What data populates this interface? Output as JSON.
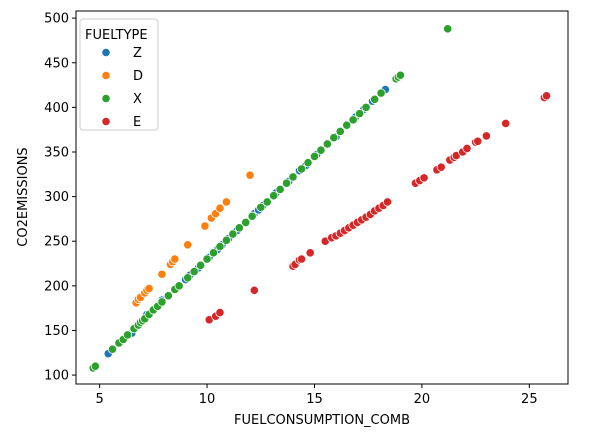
{
  "chart_data": {
    "type": "scatter",
    "xlabel": "FUELCONSUMPTION_COMB",
    "ylabel": "CO2EMISSIONS",
    "xlim": [
      3.9,
      26.8
    ],
    "ylim": [
      90,
      508
    ],
    "xticks": [
      5,
      10,
      15,
      20,
      25
    ],
    "yticks": [
      100,
      150,
      200,
      250,
      300,
      350,
      400,
      450,
      500
    ],
    "grid": false,
    "legend": {
      "title": "FUELTYPE",
      "placement": "upper-left"
    },
    "series": [
      {
        "name": "Z",
        "color": "#1f77b4",
        "points": [
          [
            5.4,
            124
          ],
          [
            6.5,
            147
          ],
          [
            7.2,
            168
          ],
          [
            7.9,
            184
          ],
          [
            8.6,
            198
          ],
          [
            9.0,
            207
          ],
          [
            9.2,
            212
          ],
          [
            9.6,
            220
          ],
          [
            10.1,
            232
          ],
          [
            10.5,
            241
          ],
          [
            10.7,
            246
          ],
          [
            11.0,
            253
          ],
          [
            11.4,
            262
          ],
          [
            11.8,
            271
          ],
          [
            12.2,
            281
          ],
          [
            12.4,
            285
          ],
          [
            12.6,
            290
          ],
          [
            13.2,
            304
          ],
          [
            13.8,
            317
          ],
          [
            14.3,
            329
          ],
          [
            14.6,
            335
          ],
          [
            15.1,
            347
          ],
          [
            15.6,
            358
          ],
          [
            16.0,
            367
          ],
          [
            16.5,
            379
          ],
          [
            16.9,
            389
          ],
          [
            17.3,
            398
          ],
          [
            17.7,
            407
          ],
          [
            18.2,
            418
          ],
          [
            18.3,
            420
          ]
        ]
      },
      {
        "name": "D",
        "color": "#ff7f0e",
        "points": [
          [
            6.7,
            181
          ],
          [
            6.8,
            185
          ],
          [
            6.9,
            187
          ],
          [
            7.1,
            192
          ],
          [
            7.2,
            195
          ],
          [
            7.3,
            197
          ],
          [
            7.9,
            213
          ],
          [
            8.3,
            224
          ],
          [
            8.4,
            227
          ],
          [
            8.5,
            230
          ],
          [
            9.1,
            246
          ],
          [
            9.9,
            267
          ],
          [
            10.2,
            276
          ],
          [
            10.4,
            281
          ],
          [
            10.6,
            287
          ],
          [
            10.9,
            294
          ],
          [
            12.0,
            324
          ]
        ]
      },
      {
        "name": "X",
        "color": "#2ca02c",
        "points": [
          [
            4.7,
            108
          ],
          [
            4.8,
            110
          ],
          [
            5.6,
            129
          ],
          [
            5.9,
            136
          ],
          [
            6.1,
            140
          ],
          [
            6.3,
            145
          ],
          [
            6.6,
            152
          ],
          [
            6.8,
            156
          ],
          [
            6.9,
            159
          ],
          [
            7.0,
            161
          ],
          [
            7.1,
            163
          ],
          [
            7.3,
            168
          ],
          [
            7.5,
            173
          ],
          [
            7.7,
            177
          ],
          [
            7.9,
            182
          ],
          [
            8.2,
            189
          ],
          [
            8.5,
            196
          ],
          [
            8.7,
            200
          ],
          [
            9.1,
            209
          ],
          [
            9.4,
            216
          ],
          [
            9.7,
            223
          ],
          [
            10.0,
            230
          ],
          [
            10.3,
            237
          ],
          [
            10.6,
            244
          ],
          [
            10.9,
            251
          ],
          [
            11.2,
            258
          ],
          [
            11.5,
            265
          ],
          [
            11.8,
            271
          ],
          [
            12.1,
            278
          ],
          [
            12.5,
            288
          ],
          [
            12.8,
            294
          ],
          [
            13.1,
            301
          ],
          [
            13.4,
            308
          ],
          [
            13.7,
            315
          ],
          [
            14.0,
            322
          ],
          [
            14.4,
            331
          ],
          [
            14.7,
            338
          ],
          [
            15.0,
            345
          ],
          [
            15.3,
            352
          ],
          [
            15.6,
            359
          ],
          [
            15.9,
            366
          ],
          [
            16.2,
            373
          ],
          [
            16.5,
            380
          ],
          [
            16.8,
            386
          ],
          [
            17.1,
            393
          ],
          [
            17.4,
            400
          ],
          [
            17.8,
            409
          ],
          [
            18.1,
            416
          ],
          [
            18.8,
            432
          ],
          [
            18.9,
            434
          ],
          [
            19.0,
            436
          ],
          [
            21.2,
            488
          ]
        ]
      },
      {
        "name": "E",
        "color": "#d62728",
        "points": [
          [
            10.1,
            162
          ],
          [
            10.4,
            166
          ],
          [
            10.6,
            170
          ],
          [
            12.2,
            195
          ],
          [
            14.0,
            222
          ],
          [
            14.1,
            224
          ],
          [
            14.3,
            229
          ],
          [
            14.4,
            230
          ],
          [
            14.8,
            237
          ],
          [
            15.5,
            250
          ],
          [
            15.8,
            254
          ],
          [
            16.0,
            256
          ],
          [
            16.2,
            259
          ],
          [
            16.4,
            262
          ],
          [
            16.6,
            265
          ],
          [
            16.8,
            268
          ],
          [
            17.0,
            271
          ],
          [
            17.2,
            274
          ],
          [
            17.4,
            277
          ],
          [
            17.6,
            280
          ],
          [
            17.8,
            284
          ],
          [
            18.0,
            287
          ],
          [
            18.2,
            290
          ],
          [
            18.4,
            294
          ],
          [
            19.7,
            315
          ],
          [
            19.9,
            318
          ],
          [
            20.1,
            321
          ],
          [
            20.7,
            330
          ],
          [
            20.9,
            333
          ],
          [
            21.3,
            341
          ],
          [
            21.5,
            344
          ],
          [
            21.6,
            346
          ],
          [
            21.9,
            350
          ],
          [
            22.1,
            354
          ],
          [
            22.5,
            361
          ],
          [
            22.6,
            362
          ],
          [
            23.0,
            368
          ],
          [
            23.9,
            382
          ],
          [
            25.7,
            411
          ],
          [
            25.8,
            413
          ]
        ]
      }
    ]
  }
}
